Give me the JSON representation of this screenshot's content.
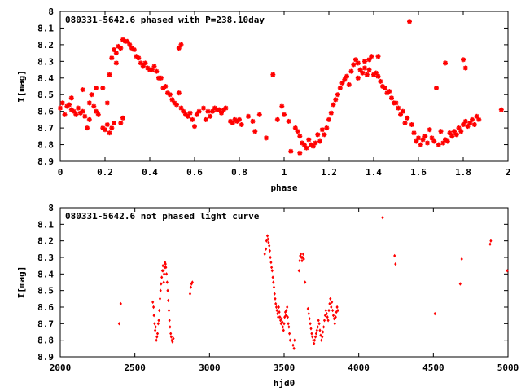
{
  "chart_data": [
    {
      "type": "scatter",
      "title": "080331-5642.6 phased with P=238.10day",
      "xlabel": "phase",
      "ylabel": "I[mag]",
      "xlim": [
        0,
        2
      ],
      "ylim": [
        8.9,
        8
      ],
      "y_inverted": true,
      "grid": false,
      "color": "#ff0000",
      "marker": "star",
      "xticks": [
        "0",
        "0.2",
        "0.4",
        "0.6",
        "0.8",
        "1",
        "1.2",
        "1.4",
        "1.6",
        "1.8",
        "2"
      ],
      "yticks": [
        "8",
        "8.1",
        "8.2",
        "8.3",
        "8.4",
        "8.5",
        "8.6",
        "8.7",
        "8.8",
        "8.9"
      ],
      "points": [
        [
          0.0,
          8.58
        ],
        [
          0.01,
          8.55
        ],
        [
          0.02,
          8.62
        ],
        [
          0.03,
          8.57
        ],
        [
          0.04,
          8.56
        ],
        [
          0.05,
          8.52
        ],
        [
          0.05,
          8.59
        ],
        [
          0.06,
          8.6
        ],
        [
          0.07,
          8.62
        ],
        [
          0.08,
          8.58
        ],
        [
          0.09,
          8.61
        ],
        [
          0.1,
          8.6
        ],
        [
          0.1,
          8.47
        ],
        [
          0.11,
          8.63
        ],
        [
          0.12,
          8.7
        ],
        [
          0.13,
          8.55
        ],
        [
          0.13,
          8.65
        ],
        [
          0.14,
          8.5
        ],
        [
          0.15,
          8.57
        ],
        [
          0.16,
          8.46
        ],
        [
          0.16,
          8.6
        ],
        [
          0.17,
          8.62
        ],
        [
          0.19,
          8.46
        ],
        [
          0.19,
          8.7
        ],
        [
          0.2,
          8.71
        ],
        [
          0.21,
          8.68
        ],
        [
          0.21,
          8.55
        ],
        [
          0.22,
          8.73
        ],
        [
          0.22,
          8.38
        ],
        [
          0.23,
          8.7
        ],
        [
          0.23,
          8.28
        ],
        [
          0.24,
          8.23
        ],
        [
          0.24,
          8.67
        ],
        [
          0.25,
          8.31
        ],
        [
          0.25,
          8.25
        ],
        [
          0.26,
          8.21
        ],
        [
          0.27,
          8.67
        ],
        [
          0.27,
          8.22
        ],
        [
          0.28,
          8.64
        ],
        [
          0.28,
          8.17
        ],
        [
          0.29,
          8.18
        ],
        [
          0.3,
          8.18
        ],
        [
          0.31,
          8.2
        ],
        [
          0.32,
          8.22
        ],
        [
          0.33,
          8.23
        ],
        [
          0.34,
          8.27
        ],
        [
          0.35,
          8.28
        ],
        [
          0.36,
          8.31
        ],
        [
          0.37,
          8.33
        ],
        [
          0.38,
          8.31
        ],
        [
          0.39,
          8.34
        ],
        [
          0.4,
          8.35
        ],
        [
          0.41,
          8.35
        ],
        [
          0.42,
          8.33
        ],
        [
          0.43,
          8.36
        ],
        [
          0.44,
          8.4
        ],
        [
          0.45,
          8.4
        ],
        [
          0.46,
          8.46
        ],
        [
          0.47,
          8.45
        ],
        [
          0.48,
          8.49
        ],
        [
          0.49,
          8.5
        ],
        [
          0.5,
          8.53
        ],
        [
          0.51,
          8.55
        ],
        [
          0.52,
          8.56
        ],
        [
          0.53,
          8.22
        ],
        [
          0.53,
          8.49
        ],
        [
          0.54,
          8.2
        ],
        [
          0.54,
          8.58
        ],
        [
          0.55,
          8.6
        ],
        [
          0.56,
          8.62
        ],
        [
          0.57,
          8.63
        ],
        [
          0.58,
          8.61
        ],
        [
          0.59,
          8.65
        ],
        [
          0.6,
          8.69
        ],
        [
          0.61,
          8.62
        ],
        [
          0.62,
          8.6
        ],
        [
          0.64,
          8.58
        ],
        [
          0.65,
          8.65
        ],
        [
          0.66,
          8.6
        ],
        [
          0.67,
          8.63
        ],
        [
          0.68,
          8.6
        ],
        [
          0.69,
          8.58
        ],
        [
          0.7,
          8.59
        ],
        [
          0.71,
          8.59
        ],
        [
          0.72,
          8.61
        ],
        [
          0.73,
          8.59
        ],
        [
          0.74,
          8.58
        ],
        [
          0.76,
          8.66
        ],
        [
          0.77,
          8.67
        ],
        [
          0.78,
          8.65
        ],
        [
          0.79,
          8.66
        ],
        [
          0.8,
          8.65
        ],
        [
          0.81,
          8.68
        ],
        [
          0.84,
          8.63
        ],
        [
          0.86,
          8.66
        ],
        [
          0.87,
          8.72
        ],
        [
          0.89,
          8.62
        ],
        [
          0.92,
          8.76
        ],
        [
          0.95,
          8.38
        ],
        [
          0.97,
          8.65
        ],
        [
          0.99,
          8.57
        ],
        [
          1.0,
          8.62
        ],
        [
          1.02,
          8.66
        ],
        [
          1.03,
          8.84
        ],
        [
          1.05,
          8.7
        ],
        [
          1.06,
          8.72
        ],
        [
          1.07,
          8.85
        ],
        [
          1.07,
          8.75
        ],
        [
          1.08,
          8.79
        ],
        [
          1.09,
          8.8
        ],
        [
          1.1,
          8.82
        ],
        [
          1.11,
          8.77
        ],
        [
          1.12,
          8.8
        ],
        [
          1.13,
          8.81
        ],
        [
          1.14,
          8.79
        ],
        [
          1.15,
          8.74
        ],
        [
          1.16,
          8.78
        ],
        [
          1.17,
          8.71
        ],
        [
          1.18,
          8.74
        ],
        [
          1.19,
          8.7
        ],
        [
          1.2,
          8.65
        ],
        [
          1.21,
          8.61
        ],
        [
          1.22,
          8.56
        ],
        [
          1.23,
          8.53
        ],
        [
          1.24,
          8.5
        ],
        [
          1.25,
          8.46
        ],
        [
          1.26,
          8.43
        ],
        [
          1.27,
          8.41
        ],
        [
          1.28,
          8.39
        ],
        [
          1.29,
          8.44
        ],
        [
          1.3,
          8.36
        ],
        [
          1.31,
          8.32
        ],
        [
          1.32,
          8.29
        ],
        [
          1.33,
          8.31
        ],
        [
          1.33,
          8.4
        ],
        [
          1.34,
          8.35
        ],
        [
          1.35,
          8.37
        ],
        [
          1.36,
          8.3
        ],
        [
          1.36,
          8.34
        ],
        [
          1.37,
          8.38
        ],
        [
          1.38,
          8.35
        ],
        [
          1.38,
          8.29
        ],
        [
          1.39,
          8.27
        ],
        [
          1.4,
          8.38
        ],
        [
          1.41,
          8.37
        ],
        [
          1.42,
          8.27
        ],
        [
          1.42,
          8.39
        ],
        [
          1.43,
          8.42
        ],
        [
          1.44,
          8.45
        ],
        [
          1.45,
          8.46
        ],
        [
          1.46,
          8.49
        ],
        [
          1.47,
          8.48
        ],
        [
          1.48,
          8.52
        ],
        [
          1.49,
          8.55
        ],
        [
          1.5,
          8.55
        ],
        [
          1.51,
          8.58
        ],
        [
          1.52,
          8.62
        ],
        [
          1.53,
          8.6
        ],
        [
          1.54,
          8.67
        ],
        [
          1.55,
          8.64
        ],
        [
          1.56,
          8.06
        ],
        [
          1.57,
          8.68
        ],
        [
          1.58,
          8.73
        ],
        [
          1.59,
          8.78
        ],
        [
          1.6,
          8.76
        ],
        [
          1.61,
          8.8
        ],
        [
          1.62,
          8.77
        ],
        [
          1.63,
          8.75
        ],
        [
          1.64,
          8.79
        ],
        [
          1.65,
          8.71
        ],
        [
          1.66,
          8.76
        ],
        [
          1.67,
          8.78
        ],
        [
          1.68,
          8.46
        ],
        [
          1.69,
          8.8
        ],
        [
          1.7,
          8.72
        ],
        [
          1.71,
          8.79
        ],
        [
          1.72,
          8.31
        ],
        [
          1.72,
          8.77
        ],
        [
          1.73,
          8.78
        ],
        [
          1.74,
          8.73
        ],
        [
          1.75,
          8.75
        ],
        [
          1.76,
          8.72
        ],
        [
          1.77,
          8.74
        ],
        [
          1.78,
          8.7
        ],
        [
          1.79,
          8.72
        ],
        [
          1.8,
          8.29
        ],
        [
          1.8,
          8.68
        ],
        [
          1.81,
          8.34
        ],
        [
          1.81,
          8.66
        ],
        [
          1.82,
          8.69
        ],
        [
          1.83,
          8.67
        ],
        [
          1.84,
          8.65
        ],
        [
          1.85,
          8.68
        ],
        [
          1.86,
          8.63
        ],
        [
          1.87,
          8.65
        ],
        [
          1.97,
          8.59
        ]
      ]
    },
    {
      "type": "scatter",
      "title": "080331-5642.6 not phased light curve",
      "xlabel": "hjd0",
      "ylabel": "I[mag]",
      "xlim": [
        2000,
        5000
      ],
      "ylim": [
        8.9,
        8
      ],
      "y_inverted": true,
      "grid": false,
      "color": "#ff0000",
      "marker": "diamond",
      "xticks": [
        "2000",
        "2500",
        "3000",
        "3500",
        "4000",
        "4500",
        "5000"
      ],
      "yticks": [
        "8",
        "8.1",
        "8.2",
        "8.3",
        "8.4",
        "8.5",
        "8.6",
        "8.7",
        "8.8",
        "8.9"
      ],
      "points": [
        [
          2395,
          8.7
        ],
        [
          2405,
          8.58
        ],
        [
          2620,
          8.57
        ],
        [
          2625,
          8.6
        ],
        [
          2628,
          8.65
        ],
        [
          2632,
          8.7
        ],
        [
          2636,
          8.74
        ],
        [
          2640,
          8.72
        ],
        [
          2644,
          8.8
        ],
        [
          2648,
          8.78
        ],
        [
          2652,
          8.76
        ],
        [
          2656,
          8.7
        ],
        [
          2660,
          8.68
        ],
        [
          2664,
          8.62
        ],
        [
          2668,
          8.55
        ],
        [
          2672,
          8.5
        ],
        [
          2676,
          8.46
        ],
        [
          2680,
          8.42
        ],
        [
          2684,
          8.38
        ],
        [
          2688,
          8.35
        ],
        [
          2692,
          8.38
        ],
        [
          2694,
          8.45
        ],
        [
          2696,
          8.4
        ],
        [
          2700,
          8.36
        ],
        [
          2702,
          8.33
        ],
        [
          2705,
          8.34
        ],
        [
          2708,
          8.36
        ],
        [
          2712,
          8.4
        ],
        [
          2716,
          8.45
        ],
        [
          2720,
          8.5
        ],
        [
          2724,
          8.56
        ],
        [
          2728,
          8.62
        ],
        [
          2732,
          8.68
        ],
        [
          2736,
          8.72
        ],
        [
          2740,
          8.76
        ],
        [
          2744,
          8.78
        ],
        [
          2748,
          8.8
        ],
        [
          2752,
          8.81
        ],
        [
          2758,
          8.79
        ],
        [
          2870,
          8.52
        ],
        [
          2875,
          8.48
        ],
        [
          2880,
          8.46
        ],
        [
          2885,
          8.45
        ],
        [
          3370,
          8.28
        ],
        [
          3378,
          8.25
        ],
        [
          3382,
          8.2
        ],
        [
          3388,
          8.17
        ],
        [
          3392,
          8.19
        ],
        [
          3396,
          8.21
        ],
        [
          3400,
          8.23
        ],
        [
          3404,
          8.26
        ],
        [
          3408,
          8.3
        ],
        [
          3412,
          8.33
        ],
        [
          3416,
          8.36
        ],
        [
          3420,
          8.38
        ],
        [
          3424,
          8.42
        ],
        [
          3428,
          8.45
        ],
        [
          3432,
          8.48
        ],
        [
          3436,
          8.52
        ],
        [
          3440,
          8.55
        ],
        [
          3444,
          8.58
        ],
        [
          3448,
          8.6
        ],
        [
          3452,
          8.62
        ],
        [
          3456,
          8.64
        ],
        [
          3460,
          8.66
        ],
        [
          3464,
          8.6
        ],
        [
          3468,
          8.63
        ],
        [
          3472,
          8.66
        ],
        [
          3476,
          8.68
        ],
        [
          3480,
          8.7
        ],
        [
          3484,
          8.67
        ],
        [
          3488,
          8.69
        ],
        [
          3492,
          8.72
        ],
        [
          3496,
          8.74
        ],
        [
          3500,
          8.7
        ],
        [
          3504,
          8.66
        ],
        [
          3508,
          8.63
        ],
        [
          3512,
          8.65
        ],
        [
          3516,
          8.62
        ],
        [
          3520,
          8.6
        ],
        [
          3524,
          8.66
        ],
        [
          3528,
          8.7
        ],
        [
          3532,
          8.72
        ],
        [
          3536,
          8.76
        ],
        [
          3540,
          8.8
        ],
        [
          3560,
          8.83
        ],
        [
          3566,
          8.85
        ],
        [
          3570,
          8.8
        ],
        [
          3600,
          8.38
        ],
        [
          3604,
          8.32
        ],
        [
          3608,
          8.29
        ],
        [
          3612,
          8.28
        ],
        [
          3616,
          8.3
        ],
        [
          3620,
          8.32
        ],
        [
          3624,
          8.3
        ],
        [
          3628,
          8.28
        ],
        [
          3632,
          8.31
        ],
        [
          3640,
          8.45
        ],
        [
          3660,
          8.61
        ],
        [
          3665,
          8.64
        ],
        [
          3670,
          8.67
        ],
        [
          3675,
          8.7
        ],
        [
          3680,
          8.73
        ],
        [
          3685,
          8.76
        ],
        [
          3690,
          8.78
        ],
        [
          3695,
          8.8
        ],
        [
          3700,
          8.82
        ],
        [
          3705,
          8.8
        ],
        [
          3710,
          8.78
        ],
        [
          3715,
          8.76
        ],
        [
          3720,
          8.74
        ],
        [
          3725,
          8.72
        ],
        [
          3730,
          8.68
        ],
        [
          3735,
          8.7
        ],
        [
          3740,
          8.74
        ],
        [
          3745,
          8.77
        ],
        [
          3750,
          8.8
        ],
        [
          3755,
          8.78
        ],
        [
          3760,
          8.75
        ],
        [
          3765,
          8.72
        ],
        [
          3770,
          8.68
        ],
        [
          3775,
          8.65
        ],
        [
          3780,
          8.62
        ],
        [
          3785,
          8.64
        ],
        [
          3790,
          8.66
        ],
        [
          3795,
          8.68
        ],
        [
          3800,
          8.62
        ],
        [
          3805,
          8.58
        ],
        [
          3810,
          8.55
        ],
        [
          3815,
          8.6
        ],
        [
          3820,
          8.57
        ],
        [
          3825,
          8.62
        ],
        [
          3830,
          8.65
        ],
        [
          3835,
          8.67
        ],
        [
          3840,
          8.7
        ],
        [
          3845,
          8.66
        ],
        [
          3850,
          8.63
        ],
        [
          3855,
          8.6
        ],
        [
          3860,
          8.62
        ],
        [
          4160,
          8.06
        ],
        [
          4240,
          8.29
        ],
        [
          4246,
          8.34
        ],
        [
          4510,
          8.64
        ],
        [
          4680,
          8.46
        ],
        [
          4690,
          8.31
        ],
        [
          4880,
          8.22
        ],
        [
          4885,
          8.2
        ],
        [
          4995,
          8.38
        ]
      ]
    }
  ]
}
